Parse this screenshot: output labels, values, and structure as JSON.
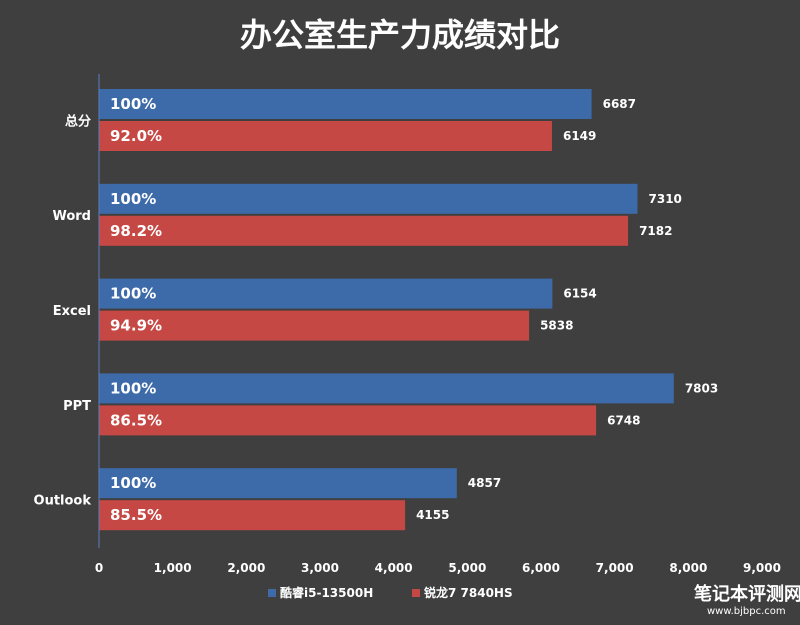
{
  "chart_data": {
    "type": "bar",
    "orientation": "horizontal",
    "title": "办公室生产力成绩对比",
    "categories": [
      "总分",
      "Word",
      "Excel",
      "PPT",
      "Outlook"
    ],
    "series": [
      {
        "name": "酷睿i5-13500H",
        "color": "#3d6aa8",
        "values": [
          6687,
          7310,
          6154,
          7803,
          4857
        ],
        "percent_labels": [
          "100%",
          "100%",
          "100%",
          "100%",
          "100%"
        ]
      },
      {
        "name": "锐龙7 7840HS",
        "color": "#c64844",
        "values": [
          6149,
          7182,
          5838,
          6748,
          4155
        ],
        "percent_labels": [
          "92.0%",
          "98.2%",
          "94.9%",
          "86.5%",
          "85.5%"
        ]
      }
    ],
    "xlim": [
      0,
      9000
    ],
    "xticks": [
      0,
      1000,
      2000,
      3000,
      4000,
      5000,
      6000,
      7000,
      8000,
      9000
    ],
    "xtick_labels": [
      "0",
      "1,000",
      "2,000",
      "3,000",
      "4,000",
      "5,000",
      "6,000",
      "7,000",
      "8,000",
      "9,000"
    ],
    "grid": false,
    "legend_position": "bottom"
  },
  "watermark": {
    "text": "笔记本评测网",
    "url": "www.bjbpc.com"
  },
  "colors": {
    "background": "#3f3f3f",
    "axis": "#5b7fb8"
  }
}
